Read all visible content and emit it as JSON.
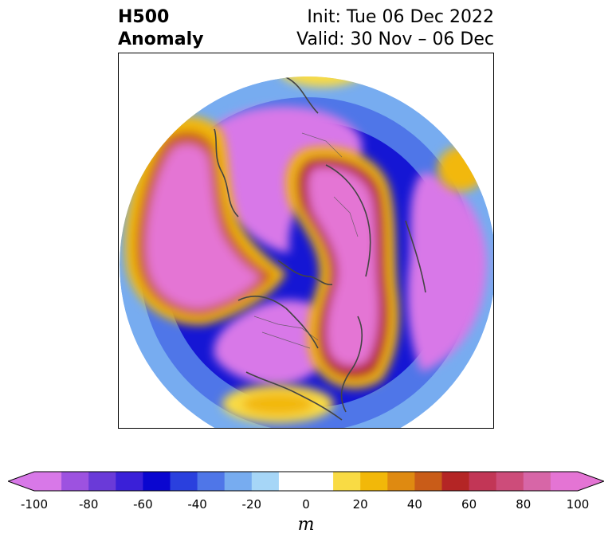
{
  "title": {
    "left_line1": "H500",
    "left_line2": "Anomaly",
    "right_line1": "Init: Tue 06 Dec 2022",
    "right_line2": "Valid: 30 Nov – 06 Dec"
  },
  "colorbar": {
    "unit": "m",
    "extend": "both",
    "levels": [
      -100,
      -90,
      -80,
      -70,
      -60,
      -50,
      -40,
      -30,
      -20,
      -10,
      10,
      20,
      30,
      40,
      50,
      60,
      70,
      80,
      90,
      100
    ],
    "tick_labels": [
      "-100",
      "-80",
      "-60",
      "-40",
      "-20",
      "0",
      "20",
      "40",
      "60",
      "80",
      "100"
    ],
    "tick_values": [
      -100,
      -80,
      -60,
      -40,
      -20,
      0,
      20,
      40,
      60,
      80,
      100
    ],
    "colors": [
      "#d878e8",
      "#9d52e0",
      "#6a3ad8",
      "#3a20d8",
      "#0a06d0",
      "#2a40de",
      "#4f76e8",
      "#77acf0",
      "#a6d6f7",
      "#ffffff",
      "#f9db44",
      "#f2b809",
      "#df8a11",
      "#c95c18",
      "#b42525",
      "#c23656",
      "#cd4c7a",
      "#d766a7",
      "#e474d4"
    ],
    "under_color": "#d878e8",
    "over_color": "#e474d4"
  },
  "map": {
    "projection": "north-polar-stereographic",
    "field": "500 hPa geopotential height anomaly"
  }
}
